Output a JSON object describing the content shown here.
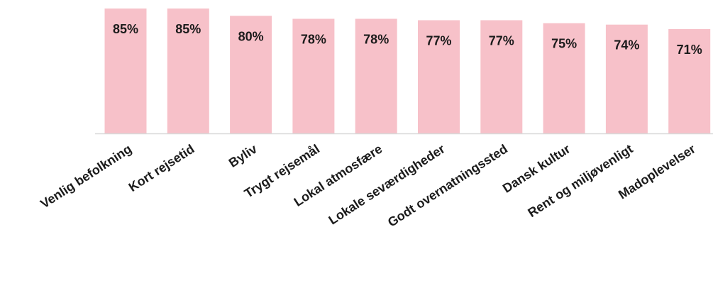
{
  "chart_data": {
    "type": "bar",
    "title": "",
    "xlabel": "",
    "ylabel": "",
    "categories": [
      "Venlig befolkning",
      "Kort rejsetid",
      "Byliv",
      "Trygt rejsemål",
      "Lokal atmosfære",
      "Lokale seværdigheder",
      "Godt overnatningssted",
      "Dansk kultur",
      "Rent og miljøvenligt",
      "Madoplevelser"
    ],
    "values": [
      85,
      85,
      80,
      78,
      78,
      77,
      77,
      75,
      74,
      71
    ],
    "value_labels": [
      "85%",
      "85%",
      "80%",
      "78%",
      "78%",
      "77%",
      "77%",
      "75%",
      "74%",
      "71%"
    ],
    "ylim": [
      0,
      100
    ],
    "grid": false,
    "legend": "none",
    "bar_color": "#f7c1c9",
    "axis_color": "#d9d9d9"
  }
}
